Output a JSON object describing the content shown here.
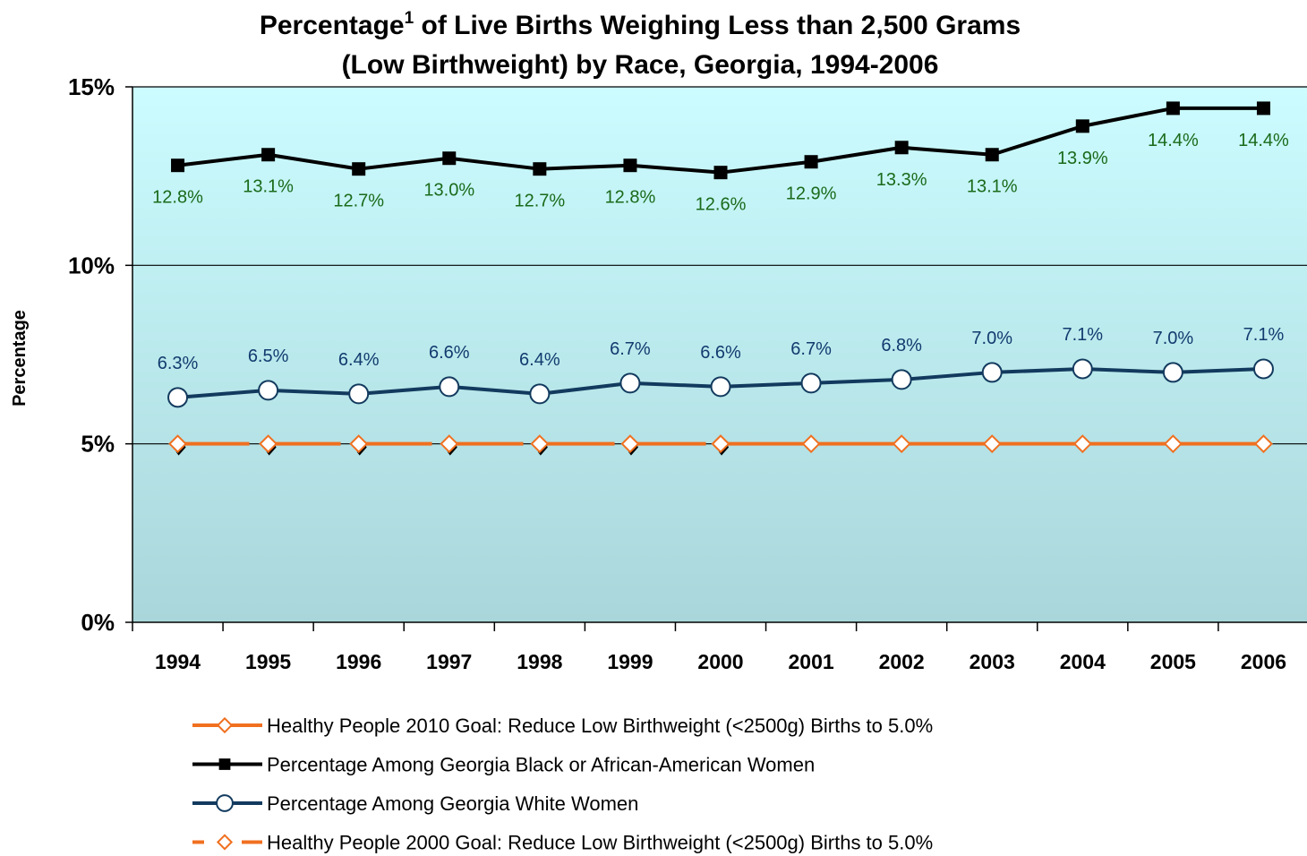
{
  "chart_data": {
    "type": "line",
    "title": [
      "Percentage",
      "1",
      " of Live Births Weighing Less than 2,500 Grams",
      "(Low Birthweight) by Race, Georgia, 1994-2006"
    ],
    "y_label": "Percentage",
    "categories": [
      "1994",
      "1995",
      "1996",
      "1997",
      "1998",
      "1999",
      "2000",
      "2001",
      "2002",
      "2003",
      "2004",
      "2005",
      "2006"
    ],
    "ylim": [
      0,
      15
    ],
    "yticks": [
      {
        "value": 0,
        "label": "0%"
      },
      {
        "value": 5,
        "label": "5%"
      },
      {
        "value": 10,
        "label": "10%"
      },
      {
        "value": 15,
        "label": "15%"
      }
    ],
    "grid": true,
    "legend": "bottom",
    "series": [
      {
        "name": "Healthy People 2010 Goal:  Reduce Low Birthweight (<2500g) Births to 5.0%",
        "color": "#f07020",
        "marker": "diamond",
        "dash": false,
        "values": [
          null,
          null,
          null,
          null,
          null,
          null,
          5.0,
          5.0,
          5.0,
          5.0,
          5.0,
          5.0,
          5.0
        ]
      },
      {
        "name": "Percentage Among Georgia Black or African-American Women",
        "color": "#000000",
        "marker": "square",
        "dash": false,
        "label_color": "#1a6a1a",
        "label_pos": "below",
        "values": [
          12.8,
          13.1,
          12.7,
          13.0,
          12.7,
          12.8,
          12.6,
          12.9,
          13.3,
          13.1,
          13.9,
          14.4,
          14.4
        ],
        "value_labels": [
          "12.8%",
          "13.1%",
          "12.7%",
          "13.0%",
          "12.7%",
          "12.8%",
          "12.6%",
          "12.9%",
          "13.3%",
          "13.1%",
          "13.9%",
          "14.4%",
          "14.4%"
        ]
      },
      {
        "name": "Percentage Among Georgia  White Women",
        "color": "#123a5e",
        "marker": "circle",
        "dash": false,
        "label_color": "#123a6e",
        "label_pos": "above",
        "values": [
          6.3,
          6.5,
          6.4,
          6.6,
          6.4,
          6.7,
          6.6,
          6.7,
          6.8,
          7.0,
          7.1,
          7.0,
          7.1
        ],
        "value_labels": [
          "6.3%",
          "6.5%",
          "6.4%",
          "6.6%",
          "6.4%",
          "6.7%",
          "6.6%",
          "6.7%",
          "6.8%",
          "7.0%",
          "7.1%",
          "7.0%",
          "7.1%"
        ]
      },
      {
        "name": "Healthy People 2000 Goal:  Reduce Low Birthweight (<2500g) Births to 5.0%",
        "color": "#f07020",
        "marker": "diamond",
        "dash": true,
        "values": [
          5.0,
          5.0,
          5.0,
          5.0,
          5.0,
          5.0,
          5.0,
          null,
          null,
          null,
          null,
          null,
          null
        ]
      }
    ]
  }
}
